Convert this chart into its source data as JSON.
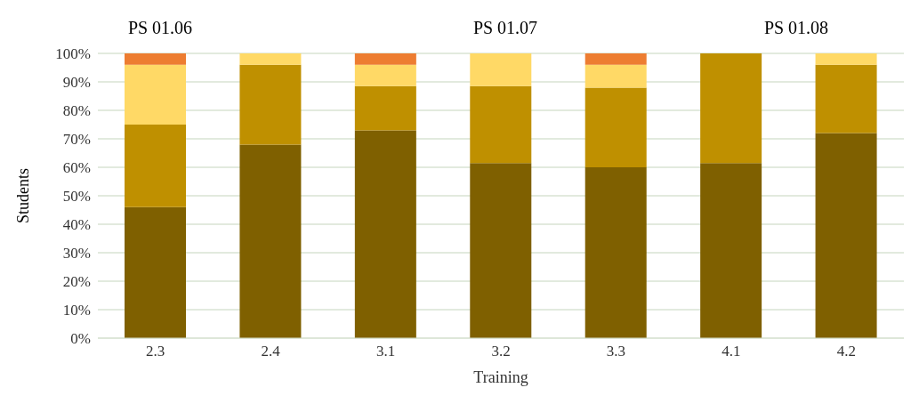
{
  "chart_data": {
    "type": "bar",
    "stacked": true,
    "xlabel": "Training",
    "ylabel": "Students",
    "categories": [
      "2.3",
      "2.4",
      "3.1",
      "3.2",
      "3.3",
      "4.1",
      "4.2"
    ],
    "series": [
      {
        "color": "#7f6000",
        "values": [
          46,
          68,
          73,
          61.5,
          60,
          61.5,
          72
        ]
      },
      {
        "color": "#bf9000",
        "values": [
          29,
          28,
          15.5,
          27,
          28,
          38.5,
          24
        ]
      },
      {
        "color": "#ffd966",
        "values": [
          21,
          4,
          7.5,
          11.5,
          8,
          0,
          4
        ]
      },
      {
        "color": "#ed7d31",
        "values": [
          4,
          0,
          4,
          0,
          4,
          0,
          0
        ]
      }
    ],
    "ylim": [
      0,
      100
    ],
    "yticks": [
      {
        "value": 0,
        "label": "0%"
      },
      {
        "value": 10,
        "label": "10%"
      },
      {
        "value": 20,
        "label": "20%"
      },
      {
        "value": 30,
        "label": "30%"
      },
      {
        "value": 40,
        "label": "40%"
      },
      {
        "value": 50,
        "label": "50%"
      },
      {
        "value": 60,
        "label": "60%"
      },
      {
        "value": 70,
        "label": "70%"
      },
      {
        "value": 80,
        "label": "80%"
      },
      {
        "value": 90,
        "label": "90%"
      },
      {
        "value": 100,
        "label": "100%"
      }
    ],
    "grid": "y",
    "legend": false,
    "annotations": [
      "PS 01.06",
      "PS 01.07",
      "PS 01.08"
    ]
  }
}
